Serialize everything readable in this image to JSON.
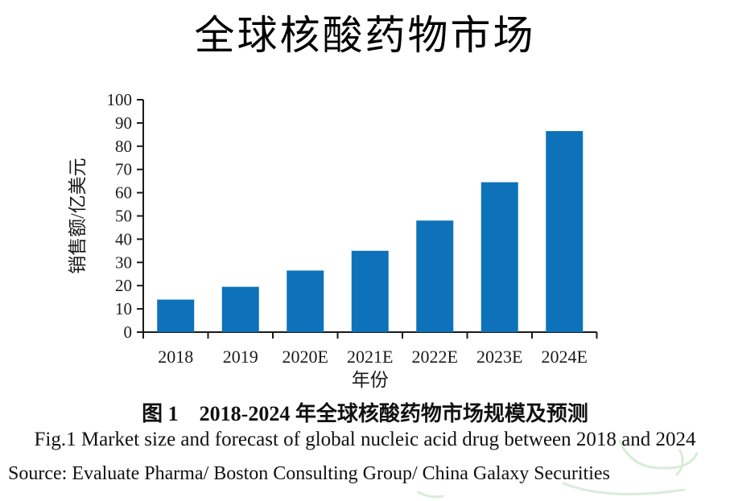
{
  "title": "全球核酸药物市场",
  "chart_data": {
    "type": "bar",
    "title": "全球核酸药物市场",
    "categories": [
      "2018",
      "2019",
      "2020E",
      "2021E",
      "2022E",
      "2023E",
      "2024E"
    ],
    "values": [
      14,
      19.5,
      26.5,
      35,
      48,
      64.5,
      86.5
    ],
    "xlabel": "年份",
    "ylabel": "销售额/亿美元",
    "ylim": [
      0,
      100
    ],
    "yticks": [
      0,
      10,
      20,
      30,
      40,
      50,
      60,
      70,
      80,
      90,
      100
    ],
    "bar_color": "#0d72b9",
    "axis_color": "#1a1a1a",
    "grid": false,
    "legend_position": "none"
  },
  "caption": {
    "zh": "图 1　2018-2024 年全球核酸药物市场规模及预测",
    "en": "Fig.1 Market size and forecast of global nucleic acid drug between 2018 and 2024",
    "source": "Source: Evaluate Pharma/ Boston Consulting Group/ China Galaxy Securities"
  },
  "watermark_color": "#a9d8a9"
}
